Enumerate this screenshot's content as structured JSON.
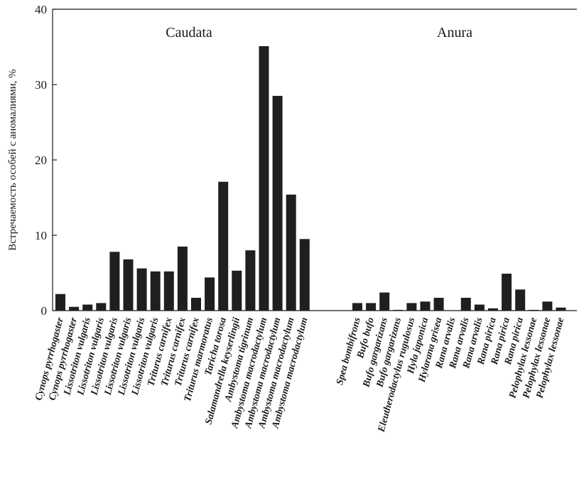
{
  "chart_data": {
    "type": "bar",
    "ylabel": "Встречаемость особей с аномалиями, %",
    "xlabel": "",
    "ylim": [
      0,
      40
    ],
    "yticks": [
      0,
      10,
      20,
      30,
      40
    ],
    "grid": false,
    "bar_color": "#1f1f1f",
    "groups": [
      {
        "name": "Caudata",
        "categories": [
          "Cynops pyrrhogaster",
          "Cynops pyrrhogaster",
          "Lissotriton vulgaris",
          "Lissotriton vulgaris",
          "Lissotriton vulgaris",
          "Lissotriton vulgaris",
          "Lissotriton vulgaris",
          "Lissotriton vulgaris",
          "Triturus carnifex",
          "Triturus carnifex",
          "Triturus carnifex",
          "Triturus marmoratus",
          "Taricha torosa",
          "Salamandrella keyserlingii",
          "Ambystoma tigrinum",
          "Ambystoma macrodactylum",
          "Ambystoma macrodactylum",
          "Ambystoma macrodactylum",
          "Ambystoma macrodactylum"
        ],
        "values": [
          2.2,
          0.5,
          0.8,
          1.0,
          7.8,
          6.8,
          5.6,
          5.2,
          5.2,
          8.5,
          1.7,
          4.4,
          17.1,
          5.3,
          8.0,
          35.1,
          28.5,
          15.4,
          9.5
        ]
      },
      {
        "name": "Anura",
        "categories": [
          "Spea bombifrons",
          "Bufo bufo",
          "Bufo gargarizans",
          "Bufo gargarizans",
          "Eleutherodactylus rugulosus",
          "Hyla japonica",
          "Hylarana grisea",
          "Rana arvalis",
          "Rana arvalis",
          "Rana arvalis",
          "Rana pirica",
          "Rana pirica",
          "Rana pirica",
          "Pelophylax lessonae",
          "Pelophylax lessonae",
          "Pelophylax lessonae"
        ],
        "values": [
          1.0,
          1.0,
          2.4,
          0.1,
          1.0,
          1.2,
          1.7,
          0.0,
          1.7,
          0.8,
          0.3,
          4.9,
          2.8,
          0.1,
          1.2,
          0.4
        ]
      }
    ]
  }
}
